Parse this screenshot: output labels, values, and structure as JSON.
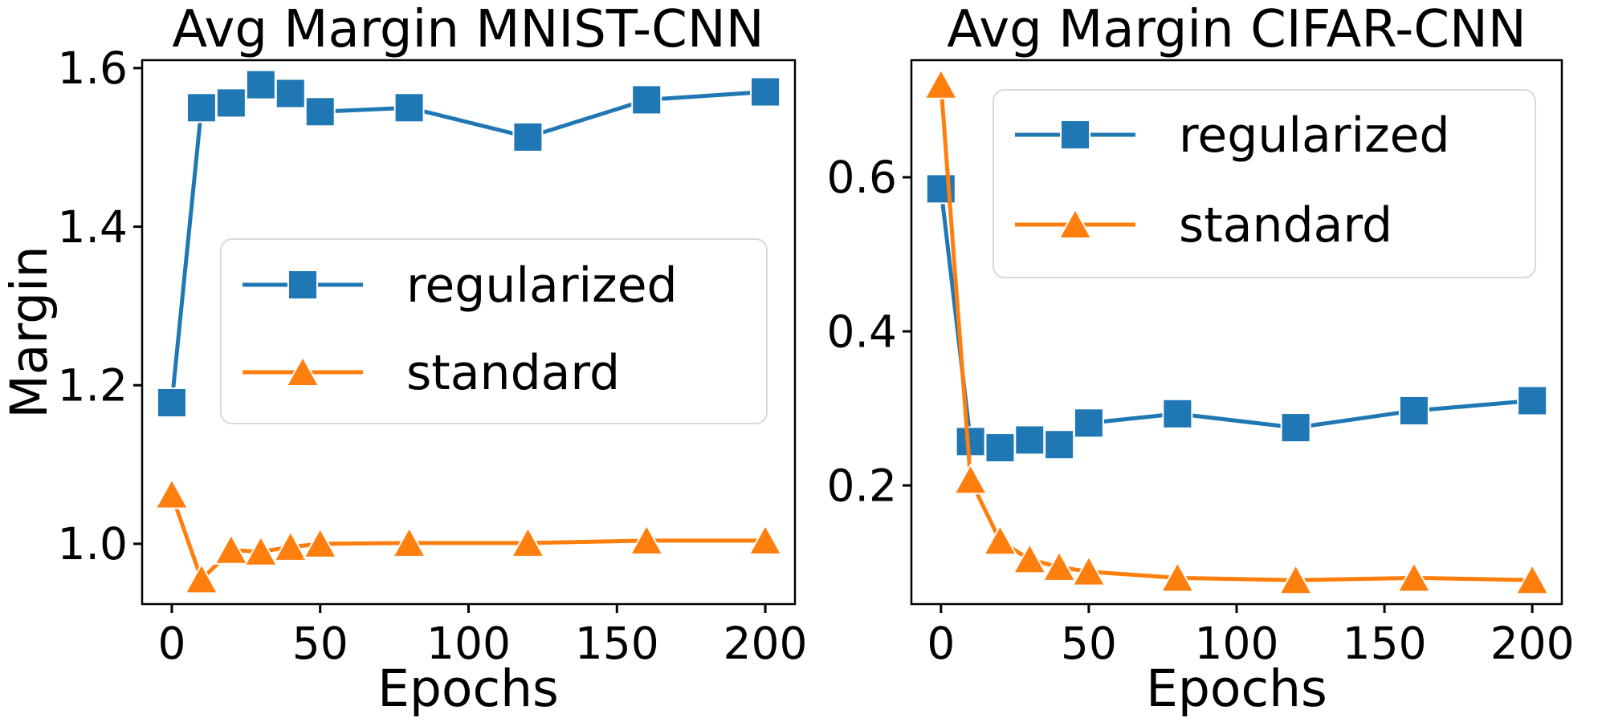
{
  "figure": {
    "background": "#ffffff"
  },
  "chart_data": [
    {
      "type": "line",
      "title": "Avg Margin MNIST-CNN",
      "xlabel": "Epochs",
      "ylabel": "Margin",
      "x": [
        0,
        10,
        20,
        30,
        40,
        50,
        80,
        120,
        160,
        200
      ],
      "xlim": [
        -10,
        210
      ],
      "ylim": [
        0.924,
        1.61
      ],
      "xticks": {
        "values": [
          0,
          50,
          100,
          150,
          200
        ],
        "labels": [
          "0",
          "50",
          "100",
          "150",
          "200"
        ]
      },
      "yticks": {
        "values": [
          1.0,
          1.2,
          1.4,
          1.6
        ],
        "labels": [
          "1.0",
          "1.2",
          "1.4",
          "1.6"
        ]
      },
      "grid": false,
      "legend_position": "center-left-inside",
      "series": [
        {
          "name": "regularized",
          "color": "#1f77b4",
          "marker": "square",
          "values": [
            1.178,
            1.55,
            1.556,
            1.579,
            1.568,
            1.545,
            1.55,
            1.513,
            1.56,
            1.57
          ]
        },
        {
          "name": "standard",
          "color": "#ff7f0e",
          "marker": "triangle",
          "values": [
            1.062,
            0.955,
            0.992,
            0.99,
            0.996,
            1.0,
            1.001,
            1.001,
            1.004,
            1.004
          ]
        }
      ]
    },
    {
      "type": "line",
      "title": "Avg Margin CIFAR-CNN",
      "xlabel": "Epochs",
      "ylabel": "",
      "x": [
        0,
        10,
        20,
        30,
        40,
        50,
        80,
        120,
        160,
        200
      ],
      "xlim": [
        -10,
        210
      ],
      "ylim": [
        0.046,
        0.752
      ],
      "xticks": {
        "values": [
          0,
          50,
          100,
          150,
          200
        ],
        "labels": [
          "0",
          "50",
          "100",
          "150",
          "200"
        ]
      },
      "yticks": {
        "values": [
          0.2,
          0.4,
          0.6
        ],
        "labels": [
          "0.2",
          "0.4",
          "0.6"
        ]
      },
      "grid": false,
      "legend_position": "upper-right-inside",
      "series": [
        {
          "name": "regularized",
          "color": "#1f77b4",
          "marker": "square",
          "values": [
            0.585,
            0.257,
            0.249,
            0.259,
            0.253,
            0.281,
            0.293,
            0.275,
            0.297,
            0.31
          ]
        },
        {
          "name": "standard",
          "color": "#ff7f0e",
          "marker": "triangle",
          "values": [
            0.72,
            0.207,
            0.128,
            0.104,
            0.094,
            0.088,
            0.08,
            0.077,
            0.08,
            0.077
          ]
        }
      ]
    }
  ]
}
